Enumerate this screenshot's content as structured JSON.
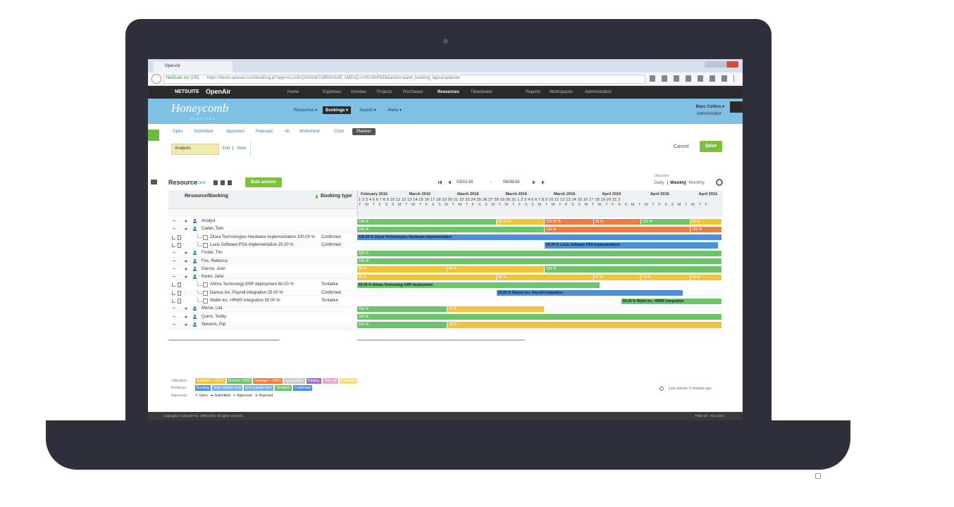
{
  "browser": {
    "tab": "OpenAir",
    "site": "NetSuite Inc (US)",
    "url": "https://demo.openair.com/booking.pl?app=rm;uid=QOrAnW7v9RGhSnB_XMDsQ;r=XfcOhtP6Z6&action=paint_booking_layout=planner"
  },
  "brand": {
    "netsuite": "NETSUITE",
    "openair": "OpenAir"
  },
  "top_nav": [
    "Home",
    "Expenses",
    "Invoices",
    "Projects",
    "Purchases",
    "Resources",
    "Timesheets",
    "Reports",
    "Workspaces",
    "Administration"
  ],
  "header": {
    "logo": "Honeycomb",
    "logo_sub": "SERVICES",
    "menus": [
      "Resources ▾",
      "Bookings ▾",
      "Search ▾",
      "Alerts ▾"
    ],
    "user": "Marc Collins ▾",
    "role": "Administrator"
  },
  "tabs": [
    "Open",
    "Submitted",
    "Approved",
    "Rejected",
    "All",
    "Worksheet",
    "Chart",
    "Planner"
  ],
  "filter": {
    "value": "Analysts",
    "edit": "Edit",
    "sep": "|",
    "view": "View"
  },
  "actions": {
    "cancel": "Cancel",
    "save": "Save"
  },
  "toolbar": {
    "title": "Resource",
    "sub": "Client",
    "bulk": "Bulk actions",
    "start": "03/01/16",
    "dash": "-",
    "end": "06/09/16",
    "util": "Utilization",
    "views": [
      "Daily",
      "Weekly",
      "Monthly"
    ]
  },
  "grid": {
    "col_resource": "Resource/Booking",
    "col_type": "Booking type",
    "months": [
      "February 2016",
      "March 2016",
      "March 2016",
      "March 2016",
      "March 2016",
      "April 2016",
      "April 2016",
      "April 2016"
    ],
    "days": "1 2 3 4 5 6 7 8 9 10 11 12 13 14 15 16 17 18 19 20 21 22 23 24 25 26 27 28 29 30 31 1 2 3 4 5 6 7 8 9 10 11 12 13 14 15 16 17 18 19 20 21 2",
    "weekdays": "T W T F S S M T W T F S S M T W T F S S M T W T F S S M T W T F S S M T W T F S S M T W T F S S M T W T F",
    "rows": [
      {
        "kind": "group",
        "name": "Analyst",
        "type": "",
        "bars": [
          {
            "label": "100 %",
            "color": "#6cc46a"
          },
          {
            "label": "29.33 %",
            "color": "#f0c33c"
          },
          {
            "label": "106.67 %",
            "color": "#f07c3e"
          },
          {
            "label": "95 %",
            "color": "#f07c3e"
          },
          {
            "label": "100 %",
            "color": "#6cc46a"
          },
          {
            "label": "80 %",
            "color": "#f0c33c"
          }
        ]
      },
      {
        "kind": "group",
        "name": "Carter, Tom",
        "type": "",
        "bars": [
          {
            "label": "100 %",
            "color": "#6cc46a"
          },
          {
            "label": "125 %",
            "color": "#f07c3e"
          },
          {
            "label": "125 %",
            "color": "#f07c3e"
          }
        ]
      },
      {
        "kind": "booking",
        "name": "Zitura Technologies:Hardware implementation 100.00 %",
        "type": "Confirmed",
        "bars": [
          {
            "label": "100.00 % Zitura Technologies Hardware implementation",
            "color": "#4a8fd8"
          }
        ]
      },
      {
        "kind": "booking",
        "name": "Luxis Software:PSA implementation 25.00 %",
        "type": "Confirmed",
        "bars": [
          {
            "label": "25.00 % Luxis Software PSA implementation",
            "color": "#4a8fd8"
          }
        ]
      },
      {
        "kind": "group",
        "name": "Foster, Tim",
        "type": "",
        "bars": [
          {
            "label": "100 %",
            "color": "#6cc46a"
          }
        ]
      },
      {
        "kind": "group",
        "name": "Fox, Rebecca",
        "type": "",
        "bars": [
          {
            "label": "100 %",
            "color": "#6cc46a"
          }
        ]
      },
      {
        "kind": "group",
        "name": "Garcia, Juan",
        "type": "",
        "bars": [
          {
            "label": "50 %",
            "color": "#f0c33c"
          },
          {
            "label": "50 %",
            "color": "#f0c33c"
          },
          {
            "label": "100 %",
            "color": "#6cc46a"
          }
        ]
      },
      {
        "kind": "group",
        "name": "Kwan, Jane",
        "type": "",
        "bars": [
          {
            "label": "60 %",
            "color": "#f0c33c"
          },
          {
            "label": "85 %",
            "color": "#f0c33c"
          },
          {
            "label": "67 %",
            "color": "#f0c33c"
          },
          {
            "label": "75 %",
            "color": "#f0c33c"
          },
          {
            "label": "50 %",
            "color": "#f0c33c"
          }
        ]
      },
      {
        "kind": "booking",
        "name": "Altima Technology:ERP deployment 60.00 %",
        "type": "Tentative",
        "bars": [
          {
            "label": "60.00 % Altima Technology ERP deployment",
            "color": "#6cc46a"
          }
        ]
      },
      {
        "kind": "booking",
        "name": "Damus Inc.:Payroll integration 25.00 %",
        "type": "Confirmed",
        "bars": [
          {
            "label": "25.00 % Damus Inc. Payroll integration",
            "color": "#4a8fd8"
          }
        ]
      },
      {
        "kind": "booking",
        "name": "Webb Inc.:HRMS integration 50.00 %",
        "type": "Tentative",
        "bars": [
          {
            "label": "50.00 % Webb Inc. HRMS integration",
            "color": "#6cc46a"
          }
        ]
      },
      {
        "kind": "group",
        "name": "Morse, Lila",
        "type": "",
        "bars": [
          {
            "label": "100 %",
            "color": "#6cc46a"
          },
          {
            "label": "15 %",
            "color": "#f0c33c"
          }
        ]
      },
      {
        "kind": "group",
        "name": "Quinn, Teddy",
        "type": "",
        "bars": [
          {
            "label": "100 %",
            "color": "#6cc46a"
          }
        ]
      },
      {
        "kind": "group",
        "name": "Stevens, Pat",
        "type": "",
        "bars": [
          {
            "label": "100 %",
            "color": "#6cc46a"
          },
          {
            "label": "10 %",
            "color": "#f0c33c"
          }
        ]
      }
    ]
  },
  "legend": {
    "utilization": {
      "title": "Utilization:",
      "items": [
        {
          "label": "Available < 100%",
          "color": "#f0c33c"
        },
        {
          "label": "Booked 100%",
          "color": "#6cc46a"
        },
        {
          "label": "Overage > 100%",
          "color": "#f07c3e"
        },
        {
          "label": "Unavailable",
          "color": "#c8c8c8"
        },
        {
          "label": "Holiday",
          "color": "#9b6fc4"
        },
        {
          "label": "Time off",
          "color": "#e8a6c8"
        },
        {
          "label": "Unloaded",
          "color": "#f3dc7c"
        }
      ]
    },
    "bookings": {
      "title": "Bookings:",
      "items": [
        {
          "label": "Booking",
          "color": "#4a8fd8"
        },
        {
          "label": "Start outside view",
          "color": "#79aee6"
        },
        {
          "label": "End outside view",
          "color": "#79aee6"
        },
        {
          "label": "Tentative",
          "color": "#6cc46a"
        },
        {
          "label": "Confirmed",
          "color": "#4a8fd8"
        }
      ]
    },
    "approvals": {
      "title": "Approvals:",
      "items": [
        "✎ Open",
        "➦ Submitted",
        "✔ Approved",
        "⊘ Rejected"
      ]
    }
  },
  "refresh": "Last refresh: 0 minutes ago",
  "footer": {
    "copyright": "Copyright © NetSuite Inc. 1999-2016. All rights reserved.",
    "filter": "Filter set : All Access"
  }
}
